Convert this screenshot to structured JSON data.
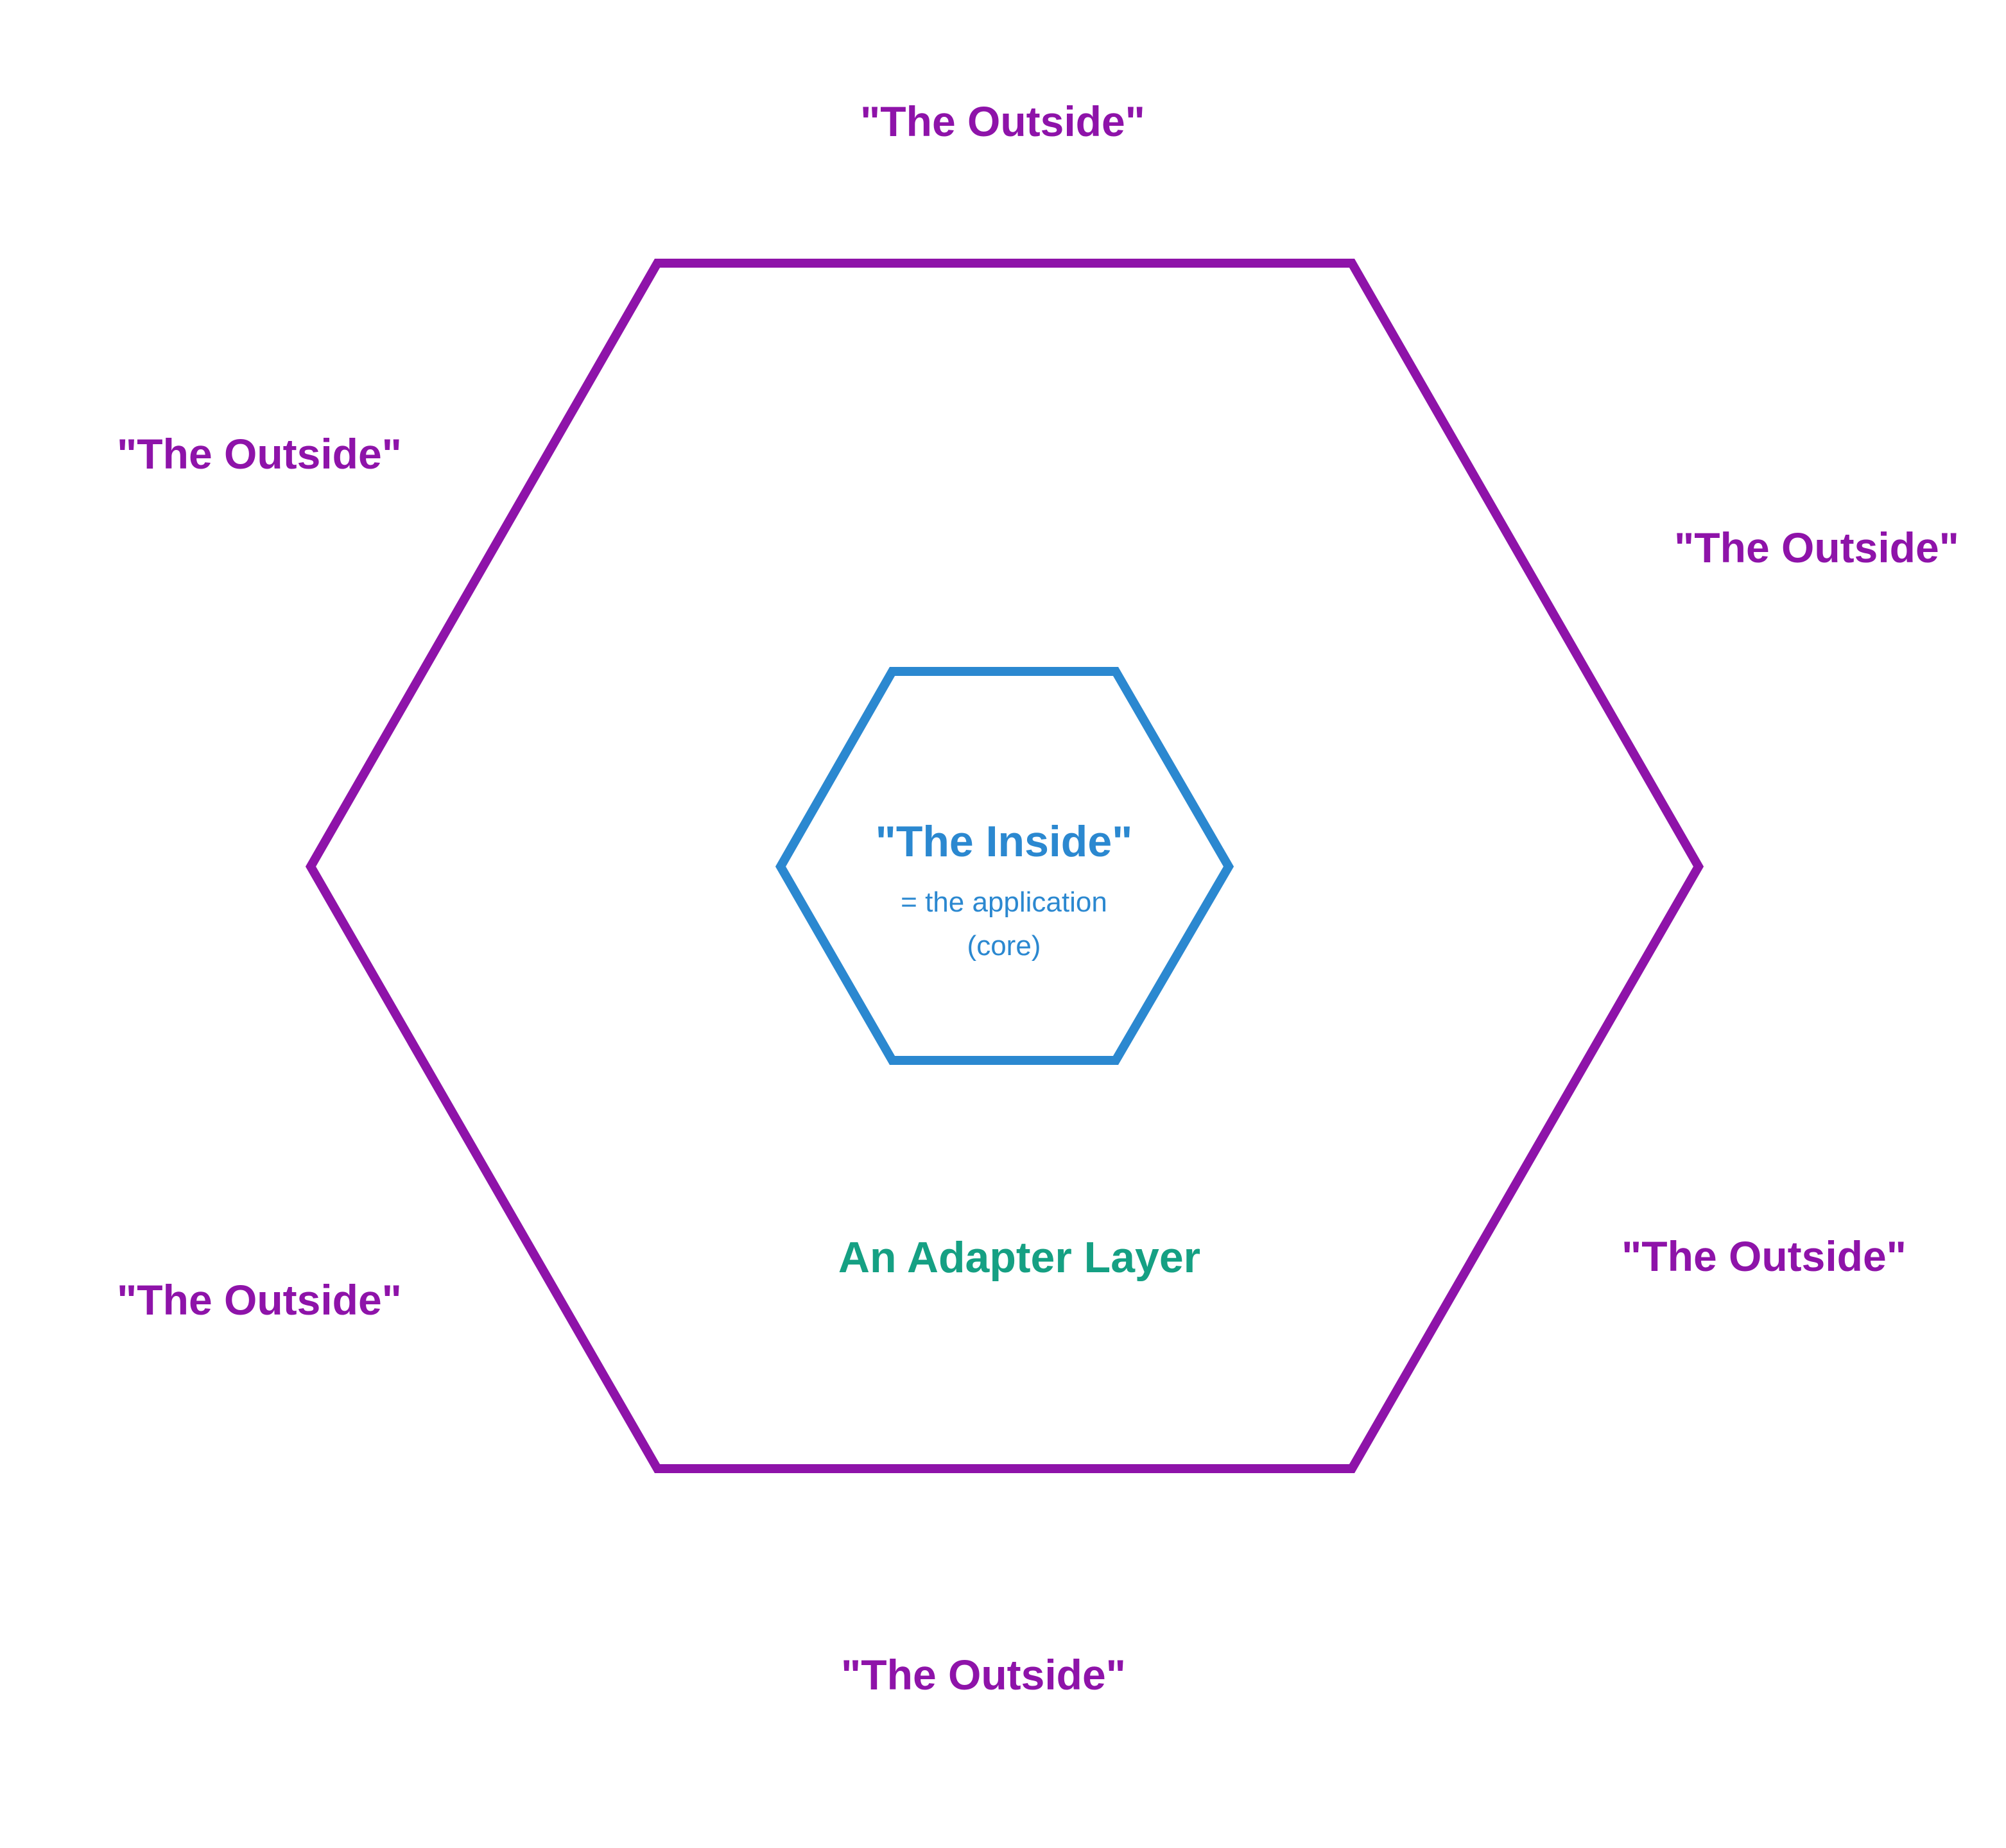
{
  "colors": {
    "outer": "#8E13A9",
    "inner": "#2B88D0",
    "adapter": "#15A083",
    "background": "#FFFFFF"
  },
  "outside_labels": [
    "\"The Outside\"",
    "\"The Outside\"",
    "\"The Outside\"",
    "\"The Outside\"",
    "\"The Outside\"",
    "\"The Outside\""
  ],
  "inside": {
    "title": "\"The Inside\"",
    "subtitle_line1": "= the application",
    "subtitle_line2": "(core)"
  },
  "adapter_label": "An Adapter Layer"
}
